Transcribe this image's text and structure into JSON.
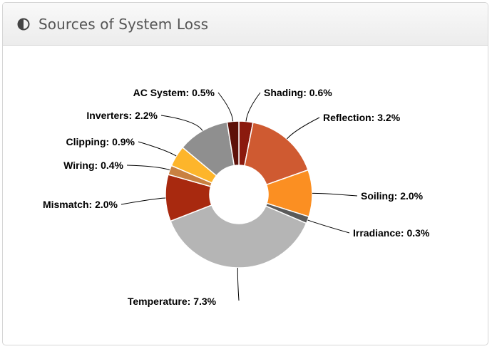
{
  "panel": {
    "title": "Sources of System Loss",
    "icon": "half-circle-icon"
  },
  "chart_data": {
    "type": "pie",
    "donut": true,
    "title": "Sources of System Loss",
    "series": [
      {
        "values": [
          {
            "label": "Shading",
            "value": 0.6,
            "display": "Shading: 0.6%",
            "color": "#8b1a0e"
          },
          {
            "label": "Reflection",
            "value": 3.2,
            "display": "Reflection: 3.2%",
            "color": "#cf5a31"
          },
          {
            "label": "Soiling",
            "value": 2.0,
            "display": "Soiling: 2.0%",
            "color": "#fb8f22"
          },
          {
            "label": "Irradiance",
            "value": 0.3,
            "display": "Irradiance: 0.3%",
            "color": "#5a5a5a"
          },
          {
            "label": "Temperature",
            "value": 7.3,
            "display": "Temperature: 7.3%",
            "color": "#b5b5b5"
          },
          {
            "label": "Mismatch",
            "value": 2.0,
            "display": "Mismatch: 2.0%",
            "color": "#a8290f"
          },
          {
            "label": "Wiring",
            "value": 0.4,
            "display": "Wiring: 0.4%",
            "color": "#c98040"
          },
          {
            "label": "Clipping",
            "value": 0.9,
            "display": "Clipping: 0.9%",
            "color": "#fdb52b"
          },
          {
            "label": "Inverters",
            "value": 2.2,
            "display": "Inverters: 2.2%",
            "color": "#8f8f8f"
          },
          {
            "label": "AC System",
            "value": 0.5,
            "display": "AC System: 0.5%",
            "color": "#5e1109"
          }
        ]
      }
    ],
    "legend": "none"
  }
}
